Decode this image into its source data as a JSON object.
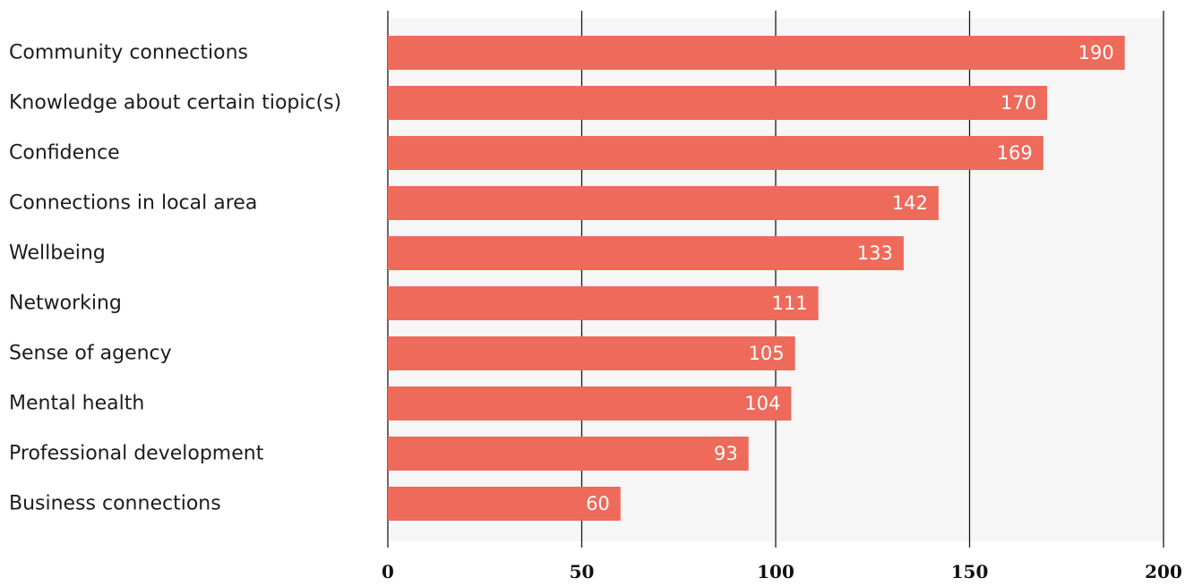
{
  "chart_data": {
    "type": "bar",
    "orientation": "horizontal",
    "categories": [
      "Community connections",
      "Knowledge about certain tiopic(s)",
      "Confidence",
      "Connections in local area",
      "Wellbeing",
      "Networking",
      "Sense of agency",
      "Mental health",
      "Professional development",
      "Business connections"
    ],
    "values": [
      190,
      170,
      169,
      142,
      133,
      111,
      105,
      104,
      93,
      60
    ],
    "data_labels": [
      "190",
      "170",
      "169",
      "142",
      "133",
      "111",
      "105",
      "104",
      "93",
      "60"
    ],
    "xlim": [
      0,
      200
    ],
    "x_ticks": [
      0,
      50,
      100,
      150,
      200
    ],
    "x_tick_labels": [
      "0",
      "50",
      "100",
      "150",
      "200"
    ],
    "grid": true,
    "legend": "none",
    "colors": {
      "bar": "#ee6a5a",
      "plot_background": "#f6f6f6",
      "gridline": "#1a1a1a",
      "value_label": "#ffffff"
    }
  }
}
